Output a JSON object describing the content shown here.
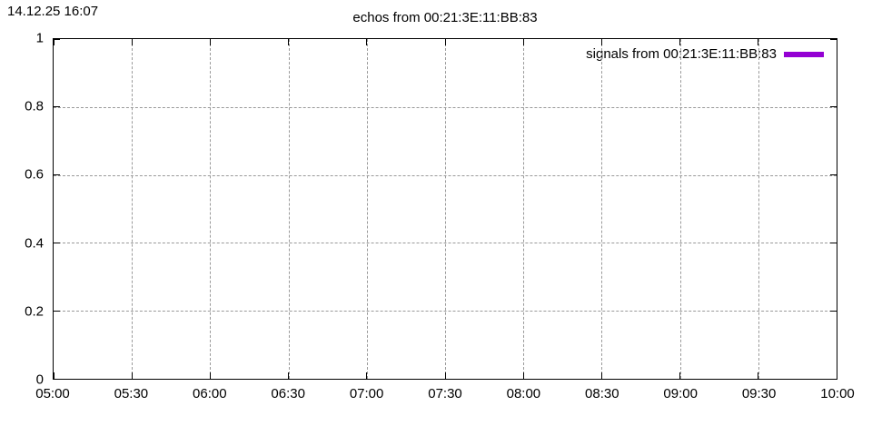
{
  "timestamp": "14.12.25 16:07",
  "colors": {
    "background": "#ffffff",
    "text": "#000000",
    "axis": "#000000",
    "grid": "#9a9a9a",
    "series": "#9400d3"
  },
  "legend": {
    "position": "top-right-inside"
  },
  "chart_data": {
    "type": "line",
    "title": "echos from 00:21:3E:11:BB:83",
    "xlabel": "",
    "ylabel": "",
    "x_ticks": [
      "05:00",
      "05:30",
      "06:00",
      "06:30",
      "07:00",
      "07:30",
      "08:00",
      "08:30",
      "09:00",
      "09:30",
      "10:00"
    ],
    "y_ticks": [
      "0",
      "0.2",
      "0.4",
      "0.6",
      "0.8",
      "1"
    ],
    "xlim": [
      "05:00",
      "10:00"
    ],
    "ylim": [
      0,
      1
    ],
    "grid": true,
    "grid_style": "dashed",
    "legend_position": "top-right-inside",
    "series": [
      {
        "name": "signals from 00:21:3E:11:BB:83",
        "color": "#9400d3",
        "points": []
      }
    ]
  }
}
